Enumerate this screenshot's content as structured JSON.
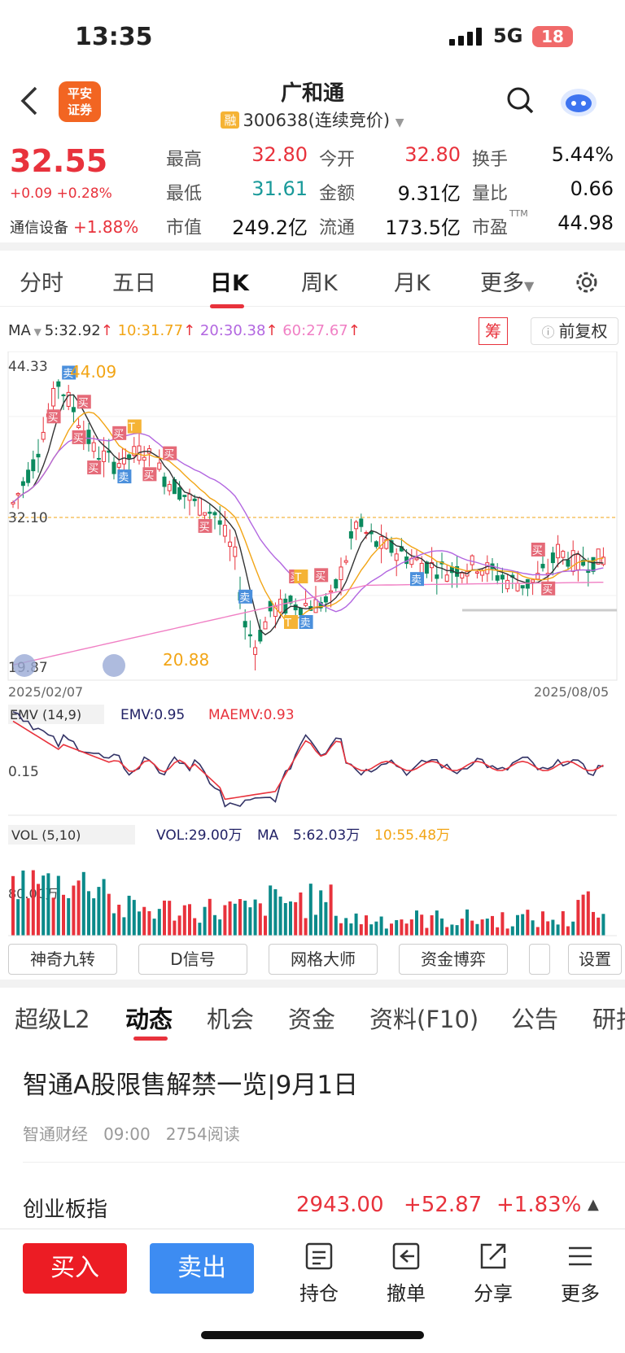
{
  "status_bar": {
    "time": "13:35",
    "network": "5G",
    "battery": "18"
  },
  "header": {
    "back_icon": "chevron-left-icon",
    "broker_logo": "平安\n证券",
    "stock_name": "广和通",
    "margin_badge": "融",
    "stock_code": "300638(连续竞价)"
  },
  "quote": {
    "price": "32.55",
    "change": "+0.09 +0.28%",
    "sector_name": "通信设备",
    "sector_change": "+1.88%",
    "fields": [
      {
        "label": "最高",
        "value": "32.80",
        "color": "red"
      },
      {
        "label": "今开",
        "value": "32.80",
        "color": "red"
      },
      {
        "label": "换手",
        "value": "5.44%",
        "color": "black"
      },
      {
        "label": "最低",
        "value": "31.61",
        "color": "green"
      },
      {
        "label": "金额",
        "value": "9.31亿",
        "color": "black"
      },
      {
        "label": "量比",
        "value": "0.66",
        "color": "black"
      },
      {
        "label": "市值",
        "value": "249.2亿",
        "color": "black"
      },
      {
        "label": "流通",
        "value": "173.5亿",
        "color": "black"
      },
      {
        "label": "市盈",
        "value": "44.98",
        "color": "black",
        "superscript": "TTM"
      }
    ]
  },
  "chart_tabs": {
    "fenshi": "分时",
    "wuri": "五日",
    "dayk": "日K",
    "weekk": "周K",
    "monthk": "月K",
    "more": "更多"
  },
  "ma": {
    "label": "MA",
    "ma5": "5:32.92",
    "ma10": "10:31.77",
    "ma20": "20:30.38",
    "ma60": "60:27.67",
    "colors": {
      "ma5": "#333333",
      "ma10": "#f2a516",
      "ma20": "#b266e0",
      "ma60": "#f07fc4"
    }
  },
  "chart_buttons": {
    "chou": "筹",
    "fuquan": "前复权"
  },
  "chart_data": {
    "type": "candlestick",
    "date_start": "2025/02/07",
    "date_end": "2025/08/05",
    "price_high_label": "44.33",
    "price_mid_label": "32.10",
    "price_low_label": "19.87",
    "max_marker": "44.09",
    "min_marker": "20.88",
    "marker_buy": "买",
    "marker_sell": "卖",
    "marker_t": "T"
  },
  "emv": {
    "label": "EMV (14,9)",
    "emv": "EMV:0.95",
    "maemv": "MAEMV:0.93",
    "axis": "0.15"
  },
  "vol": {
    "label": "VOL (5,10)",
    "vol": "VOL:29.00万",
    "ma_label": "MA",
    "ma5": "5:62.03万",
    "ma10": "10:55.48万",
    "axis": "80.00万"
  },
  "tools": {
    "t1": "神奇九转",
    "t2": "D信号",
    "t3": "网格大师",
    "t4": "资金博弈",
    "settings": "设置"
  },
  "news_tabs": {
    "l2": "超级L2",
    "dynamic": "动态",
    "chance": "机会",
    "funds": "资金",
    "f10": "资料(F10)",
    "notice": "公告",
    "research": "研报"
  },
  "news": {
    "title": "智通A股限售解禁一览|9月1日",
    "source": "智通财经",
    "time": "09:00",
    "reads": "2754阅读"
  },
  "index_bar": {
    "name": "创业板指",
    "value": "2943.00",
    "change": "+52.87",
    "pct": "+1.83%"
  },
  "bottom_bar": {
    "buy": "买入",
    "sell": "卖出",
    "position": "持仓",
    "cancel": "撤单",
    "share": "分享",
    "more": "更多"
  }
}
